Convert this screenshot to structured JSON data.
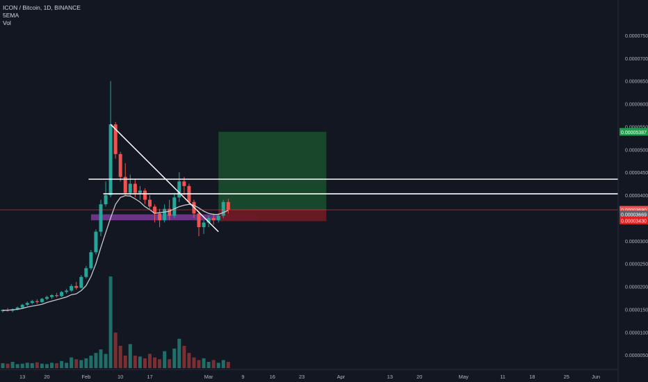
{
  "header": {
    "symbol_line": "ICON / Bitcoin, 1D, BINANCE",
    "indicator_1": "5EMA",
    "indicator_2": "Vol"
  },
  "price_axis": {
    "ticks": [
      "0.00007500",
      "0.00007000",
      "0.00006500",
      "0.00006000",
      "0.00005500",
      "0.00005000",
      "0.00004500",
      "0.00004000",
      "0.00003500",
      "0.00003000",
      "0.00002500",
      "0.00002000",
      "0.00001500",
      "0.00001000",
      "0.00000500"
    ],
    "tick_values": [
      7.5,
      7.0,
      6.5,
      6.0,
      5.5,
      5.0,
      4.5,
      4.0,
      3.5,
      3.0,
      2.5,
      2.0,
      1.5,
      1.0,
      0.5
    ],
    "unit_scale": "1e-5"
  },
  "time_axis": {
    "labels": [
      "13",
      "20",
      "Feb",
      "10",
      "17",
      "Mar",
      "9",
      "16",
      "23",
      "Apr",
      "13",
      "20",
      "May",
      "11",
      "18",
      "25",
      "Jun"
    ]
  },
  "badges": {
    "target": "0.00005387",
    "last_price": "0.00003680",
    "countdown_prefix": "0.",
    "countdown": "07:33:08",
    "ema_value": "0.00003669",
    "stop": "0.00003430"
  },
  "colors": {
    "background": "#131722",
    "up": "#26a69a",
    "down": "#ef5350",
    "ema": "#c8c8d0",
    "profit_zone": "#1b4d2e",
    "loss_zone": "#6b1a22",
    "purple_zone": "#8a3fa8",
    "target_badge": "#1e9e4a",
    "stop_badge": "#e02020",
    "last_badge": "#ef5350",
    "ema_badge": "#5d606b",
    "trendline": "#ffffff",
    "price_line": "#ef5350"
  },
  "chart_data": {
    "type": "candlestick",
    "price_unit": "1e-5 BTC",
    "candles": [
      [
        1.46,
        1.5,
        1.43,
        1.49
      ],
      [
        1.49,
        1.53,
        1.45,
        1.47
      ],
      [
        1.47,
        1.52,
        1.44,
        1.5
      ],
      [
        1.5,
        1.56,
        1.48,
        1.54
      ],
      [
        1.54,
        1.62,
        1.52,
        1.6
      ],
      [
        1.6,
        1.67,
        1.57,
        1.64
      ],
      [
        1.64,
        1.71,
        1.61,
        1.68
      ],
      [
        1.68,
        1.72,
        1.62,
        1.66
      ],
      [
        1.66,
        1.75,
        1.64,
        1.73
      ],
      [
        1.73,
        1.8,
        1.7,
        1.77
      ],
      [
        1.77,
        1.83,
        1.73,
        1.81
      ],
      [
        1.81,
        1.86,
        1.76,
        1.79
      ],
      [
        1.79,
        1.9,
        1.77,
        1.88
      ],
      [
        1.88,
        1.95,
        1.84,
        1.91
      ],
      [
        1.91,
        2.05,
        1.88,
        2.01
      ],
      [
        2.01,
        2.1,
        1.93,
        1.97
      ],
      [
        1.97,
        2.25,
        1.96,
        2.21
      ],
      [
        2.21,
        2.45,
        2.18,
        2.4
      ],
      [
        2.4,
        2.8,
        2.36,
        2.75
      ],
      [
        2.75,
        3.25,
        2.7,
        3.2
      ],
      [
        3.2,
        3.9,
        3.1,
        3.8
      ],
      [
        3.8,
        4.3,
        3.75,
        4.0
      ],
      [
        4.0,
        6.5,
        3.95,
        5.55
      ],
      [
        5.55,
        5.6,
        4.8,
        4.9
      ],
      [
        4.9,
        4.95,
        4.3,
        4.4
      ],
      [
        4.4,
        4.7,
        4.0,
        4.05
      ],
      [
        4.05,
        4.45,
        3.98,
        4.25
      ],
      [
        4.25,
        4.35,
        3.95,
        4.05
      ],
      [
        4.05,
        4.2,
        3.9,
        4.1
      ],
      [
        4.1,
        4.15,
        3.8,
        3.9
      ],
      [
        3.9,
        4.0,
        3.7,
        3.75
      ],
      [
        3.75,
        3.8,
        3.4,
        3.6
      ],
      [
        3.6,
        3.7,
        3.3,
        3.45
      ],
      [
        3.45,
        3.8,
        3.4,
        3.7
      ],
      [
        3.7,
        3.9,
        3.45,
        3.55
      ],
      [
        3.55,
        4.05,
        3.5,
        3.95
      ],
      [
        3.95,
        4.5,
        3.85,
        4.3
      ],
      [
        4.3,
        4.4,
        4.0,
        4.2
      ],
      [
        4.2,
        4.25,
        3.8,
        3.85
      ],
      [
        3.85,
        3.9,
        3.5,
        3.6
      ],
      [
        3.6,
        3.65,
        3.1,
        3.3
      ],
      [
        3.3,
        3.45,
        3.15,
        3.4
      ],
      [
        3.4,
        3.55,
        3.3,
        3.5
      ],
      [
        3.5,
        3.6,
        3.35,
        3.45
      ],
      [
        3.45,
        3.6,
        3.4,
        3.55
      ],
      [
        3.55,
        3.9,
        3.5,
        3.85
      ],
      [
        3.85,
        3.92,
        3.6,
        3.68
      ]
    ],
    "volume": [
      0.55,
      0.5,
      0.7,
      0.45,
      0.5,
      0.6,
      0.55,
      0.65,
      0.5,
      0.45,
      0.6,
      0.55,
      0.8,
      0.6,
      1.2,
      1.0,
      0.9,
      1.1,
      1.4,
      1.7,
      2.1,
      1.6,
      10.3,
      4.0,
      2.5,
      1.4,
      2.7,
      1.4,
      1.3,
      1.1,
      1.6,
      1.2,
      1.0,
      1.9,
      1.0,
      2.2,
      3.3,
      2.5,
      1.7,
      1.2,
      0.9,
      1.1,
      0.7,
      0.9,
      0.6,
      0.9,
      0.7
    ],
    "ema": [
      1.48,
      1.48,
      1.49,
      1.5,
      1.52,
      1.55,
      1.57,
      1.59,
      1.61,
      1.65,
      1.68,
      1.71,
      1.74,
      1.77,
      1.82,
      1.84,
      1.91,
      2.02,
      2.22,
      2.5,
      2.85,
      3.18,
      3.5,
      3.8,
      3.95,
      3.99,
      3.98,
      3.92,
      3.85,
      3.75,
      3.68,
      3.6,
      3.62,
      3.63,
      3.65,
      3.7,
      3.75,
      3.78,
      3.8,
      3.78,
      3.72,
      3.65,
      3.6,
      3.58,
      3.58,
      3.62,
      3.669
    ],
    "trendline": [
      [
        22,
        5.55
      ],
      [
        36,
        4.0
      ],
      [
        44,
        3.2
      ]
    ],
    "horizontal_levels": [
      4.35,
      4.03
    ],
    "purple_zone": {
      "x": [
        18,
        52
      ],
      "y": [
        3.45,
        3.58
      ]
    },
    "position": {
      "x": [
        44,
        66
      ],
      "entry": 3.68,
      "target": 5.387,
      "stop": 3.43
    },
    "ylim": [
      0,
      8.0
    ],
    "xlim": [
      -1,
      125
    ],
    "volume_max": 10.3
  }
}
